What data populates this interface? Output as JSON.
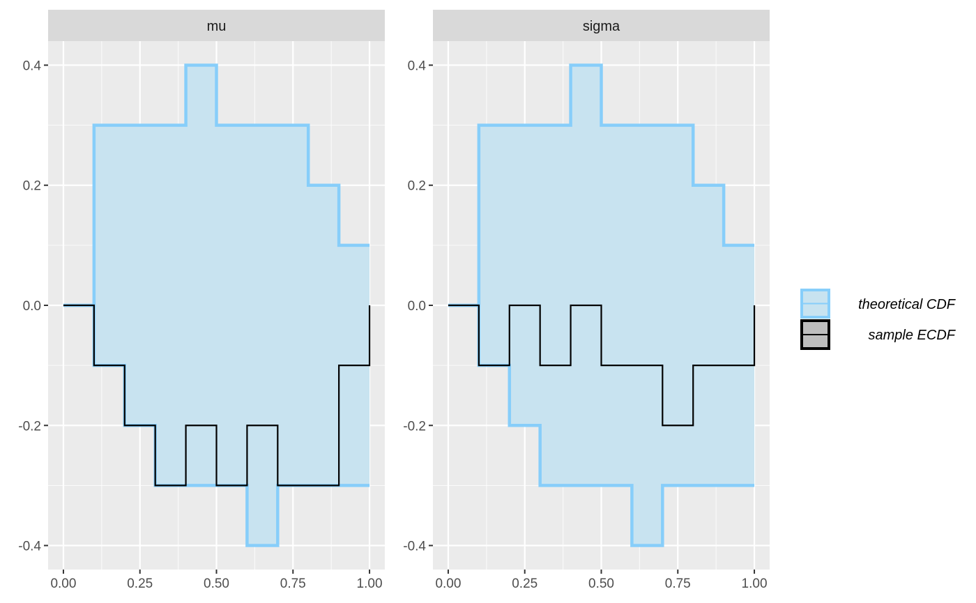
{
  "chart_data": {
    "type": "line",
    "facets": [
      {
        "name": "mu",
        "upper": [
          0,
          0.3,
          0.3,
          0.3,
          0.4,
          0.3,
          0.3,
          0.3,
          0.2,
          0.1,
          0.1
        ],
        "lower": [
          0,
          -0.1,
          -0.2,
          -0.3,
          -0.3,
          -0.3,
          -0.4,
          -0.3,
          -0.3,
          -0.3,
          -0.3
        ],
        "ecdf": [
          0,
          -0.1,
          -0.2,
          -0.3,
          -0.2,
          -0.3,
          -0.2,
          -0.3,
          -0.3,
          -0.1,
          0
        ]
      },
      {
        "name": "sigma",
        "upper": [
          0,
          0.3,
          0.3,
          0.3,
          0.4,
          0.3,
          0.3,
          0.3,
          0.2,
          0.1,
          0.1
        ],
        "lower": [
          0,
          -0.1,
          -0.2,
          -0.3,
          -0.3,
          -0.3,
          -0.4,
          -0.3,
          -0.3,
          -0.3,
          -0.3
        ],
        "ecdf": [
          0,
          -0.1,
          0,
          -0.1,
          0,
          -0.1,
          -0.1,
          -0.2,
          -0.1,
          -0.1,
          0
        ]
      }
    ],
    "x": [
      0,
      0.1,
      0.2,
      0.3,
      0.4,
      0.5,
      0.6,
      0.7,
      0.8,
      0.9,
      1.0
    ],
    "xlim": [
      -0.05,
      1.05
    ],
    "ylim": [
      -0.44,
      0.44
    ],
    "xticks": [
      0,
      0.25,
      0.5,
      0.75,
      1.0
    ],
    "xtick_labels": [
      "0.00",
      "0.25",
      "0.50",
      "0.75",
      "1.00"
    ],
    "yticks": [
      0.4,
      0.2,
      0.0,
      -0.2,
      -0.4
    ],
    "ytick_labels": [
      "0.4",
      "0.2",
      "0.0",
      "-0.2",
      "-0.4"
    ],
    "grid": true,
    "legend": {
      "placement": "right",
      "entries": [
        {
          "label": "theoretical CDF",
          "color": "#87cefa",
          "fill": "#c8e3f0"
        },
        {
          "label": "sample ECDF",
          "color": "#000000",
          "fill": "#bebebe"
        }
      ]
    },
    "colors": {
      "band_stroke": "#87cefa",
      "band_fill": "#c8e3f0",
      "ecdf_line": "#000000"
    }
  }
}
